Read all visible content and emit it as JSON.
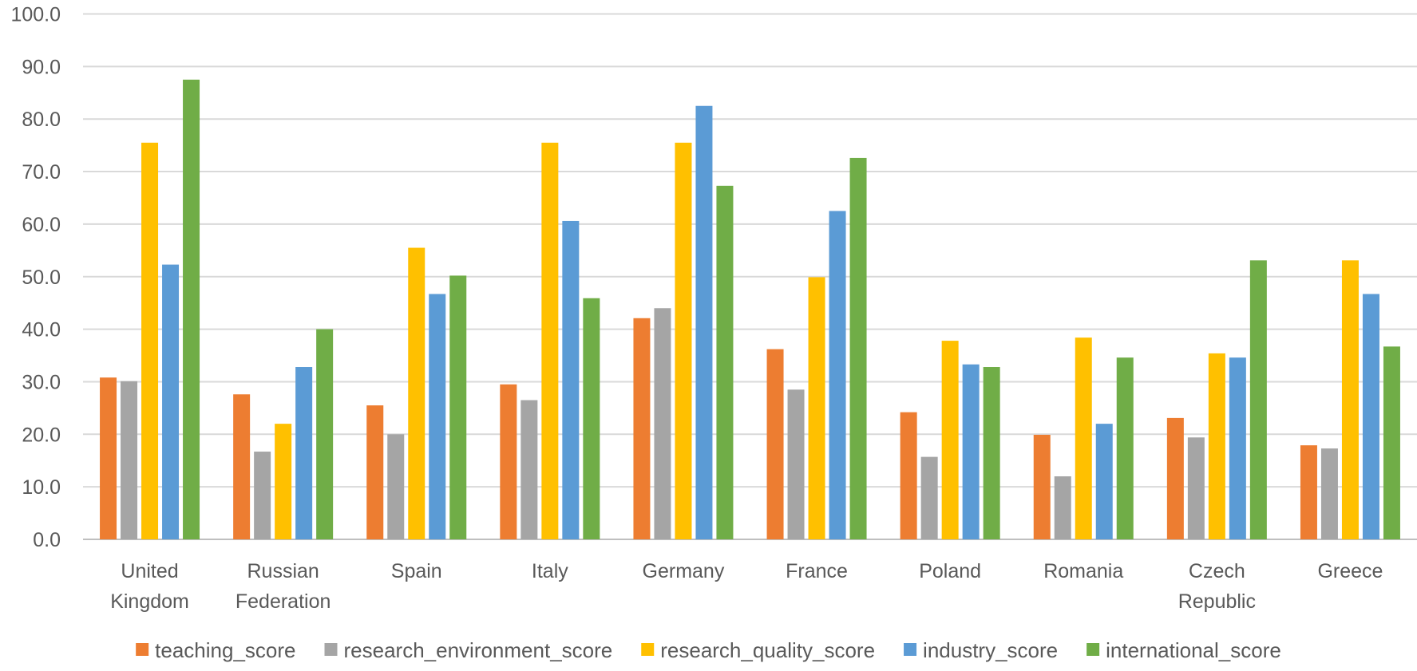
{
  "chart_data": {
    "type": "bar",
    "title": "",
    "xlabel": "",
    "ylabel": "",
    "ylim": [
      0,
      100
    ],
    "yticks": [
      "0.0",
      "10.0",
      "20.0",
      "30.0",
      "40.0",
      "50.0",
      "60.0",
      "70.0",
      "80.0",
      "90.0",
      "100.0"
    ],
    "grid": true,
    "legend_position": "bottom",
    "categories": [
      [
        "United",
        "Kingdom"
      ],
      [
        "Russian",
        "Federation"
      ],
      [
        "Spain"
      ],
      [
        "Italy"
      ],
      [
        "Germany"
      ],
      [
        "France"
      ],
      [
        "Poland"
      ],
      [
        "Romania"
      ],
      [
        "Czech",
        "Republic"
      ],
      [
        "Greece"
      ]
    ],
    "series": [
      {
        "name": "teaching_score",
        "color": "#ED7D31",
        "values": [
          30.8,
          27.6,
          25.5,
          29.5,
          42.1,
          36.2,
          24.2,
          19.9,
          23.1,
          17.9
        ]
      },
      {
        "name": "research_environment_score",
        "color": "#A5A5A5",
        "values": [
          30.1,
          16.7,
          20.0,
          26.5,
          44.0,
          28.5,
          15.7,
          12.0,
          19.4,
          17.3
        ]
      },
      {
        "name": "research_quality_score",
        "color": "#FFC000",
        "values": [
          75.5,
          22.0,
          55.5,
          75.5,
          75.5,
          49.9,
          37.8,
          38.4,
          35.4,
          53.1
        ]
      },
      {
        "name": "industry_score",
        "color": "#5B9BD5",
        "values": [
          52.3,
          32.8,
          46.7,
          60.6,
          82.5,
          62.5,
          33.3,
          22.0,
          34.6,
          46.7
        ]
      },
      {
        "name": "international_score",
        "color": "#70AD47",
        "values": [
          87.5,
          40.0,
          50.2,
          45.9,
          67.3,
          72.6,
          32.8,
          34.6,
          53.1,
          36.7
        ]
      }
    ]
  }
}
